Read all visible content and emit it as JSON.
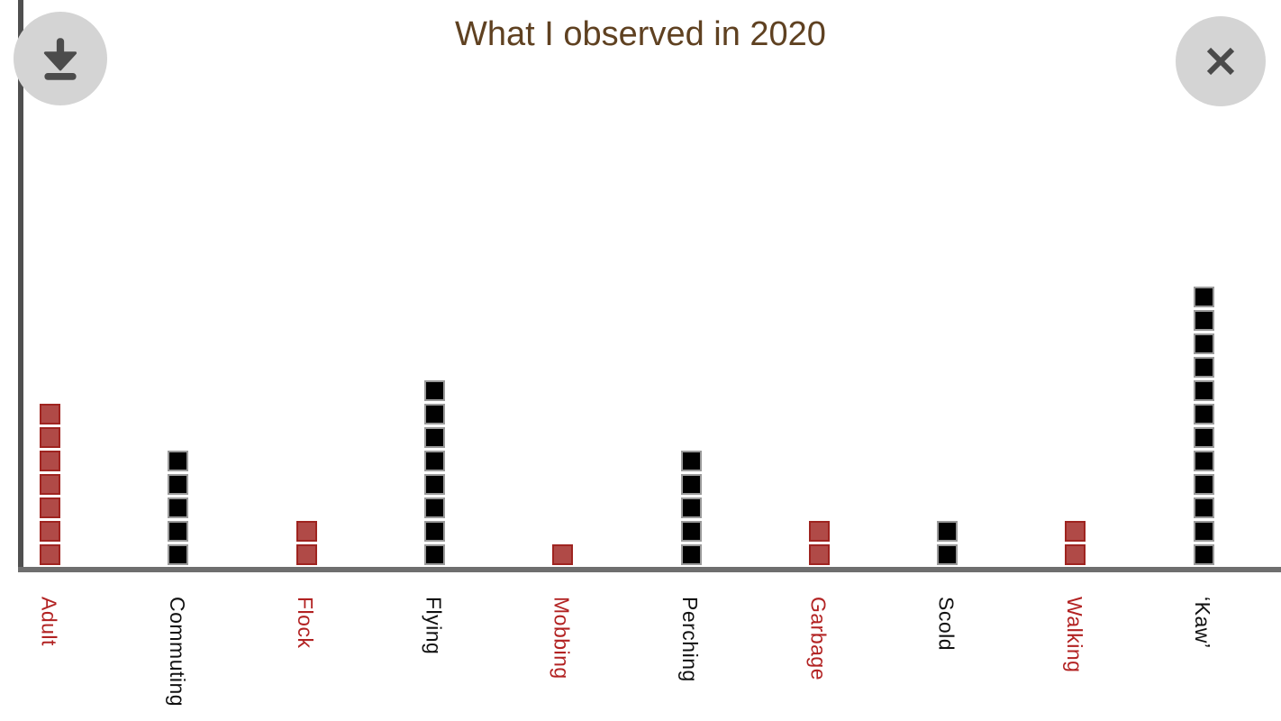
{
  "header": {
    "title": "What I observed in 2020"
  },
  "toolbar": {
    "download_icon": "download-arrow",
    "close_icon": "close-x"
  },
  "colors": {
    "title": "#5f4121",
    "button_background": "#d4d4d4",
    "button_glyph": "#4c4c4c",
    "axis_vertical": "#4f4f4f",
    "axis_horizontal": "#6e6e6e",
    "background": "#ffffff"
  },
  "chart_data": {
    "type": "bar",
    "subtype": "pictogram-unit-stack",
    "title": "What I observed in 2020",
    "xlabel": "",
    "ylabel": "",
    "grid": false,
    "legend": "none",
    "y_axis_ticks": "none",
    "categories": [
      "Adult",
      "Commuting",
      "Flock",
      "Flying",
      "Mobbing",
      "Perching",
      "Garbage",
      "Scold",
      "Walking",
      "‘Kaw’"
    ],
    "values": [
      7,
      5,
      2,
      8,
      1,
      5,
      2,
      2,
      2,
      12
    ],
    "category_color_keys": [
      "red",
      "black",
      "red",
      "black",
      "red",
      "black",
      "red",
      "black",
      "red",
      "black"
    ],
    "palette": {
      "red": {
        "fill": "#b04a47",
        "border": "#9f2420",
        "label": "#b22222"
      },
      "black": {
        "fill": "#010101",
        "border": "#9a9a9a",
        "label": "#111111"
      }
    }
  }
}
